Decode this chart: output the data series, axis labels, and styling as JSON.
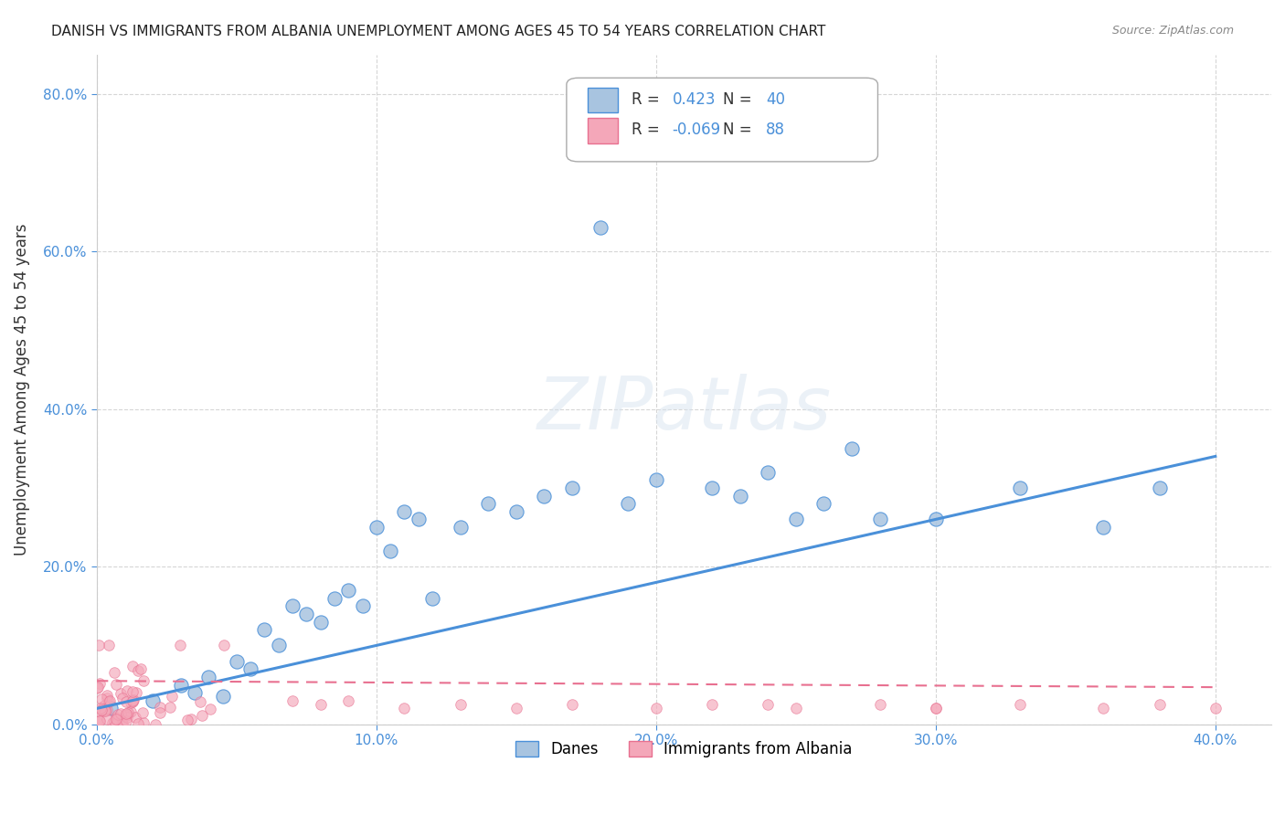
{
  "title": "DANISH VS IMMIGRANTS FROM ALBANIA UNEMPLOYMENT AMONG AGES 45 TO 54 YEARS CORRELATION CHART",
  "source": "Source: ZipAtlas.com",
  "xlabel_tick_vals": [
    0.0,
    0.1,
    0.2,
    0.3,
    0.4
  ],
  "ylabel": "Unemployment Among Ages 45 to 54 years",
  "ylabel_tick_vals": [
    0.0,
    0.2,
    0.4,
    0.6,
    0.8
  ],
  "xlim": [
    0.0,
    0.42
  ],
  "ylim": [
    0.0,
    0.85
  ],
  "danes_R": 0.423,
  "danes_N": 40,
  "albania_R": -0.069,
  "albania_N": 88,
  "danes_color": "#a8c4e0",
  "albania_color": "#f4a7b9",
  "danes_line_color": "#4a90d9",
  "albania_line_color": "#e87090",
  "danes_scatter_x": [
    0.005,
    0.02,
    0.03,
    0.035,
    0.04,
    0.045,
    0.05,
    0.055,
    0.06,
    0.065,
    0.07,
    0.075,
    0.08,
    0.085,
    0.09,
    0.095,
    0.1,
    0.105,
    0.11,
    0.115,
    0.12,
    0.13,
    0.14,
    0.15,
    0.16,
    0.17,
    0.18,
    0.19,
    0.2,
    0.22,
    0.23,
    0.24,
    0.25,
    0.26,
    0.27,
    0.28,
    0.3,
    0.33,
    0.36,
    0.38
  ],
  "danes_scatter_y": [
    0.02,
    0.03,
    0.05,
    0.04,
    0.06,
    0.035,
    0.08,
    0.07,
    0.12,
    0.1,
    0.15,
    0.14,
    0.13,
    0.16,
    0.17,
    0.15,
    0.25,
    0.22,
    0.27,
    0.26,
    0.16,
    0.25,
    0.28,
    0.27,
    0.29,
    0.3,
    0.63,
    0.28,
    0.31,
    0.3,
    0.29,
    0.32,
    0.26,
    0.28,
    0.35,
    0.26,
    0.26,
    0.3,
    0.25,
    0.3
  ],
  "danes_line_x": [
    0.0,
    0.4
  ],
  "danes_line_y": [
    0.02,
    0.34
  ],
  "albania_line_x": [
    0.0,
    0.4
  ],
  "albania_line_y": [
    0.055,
    0.047
  ]
}
